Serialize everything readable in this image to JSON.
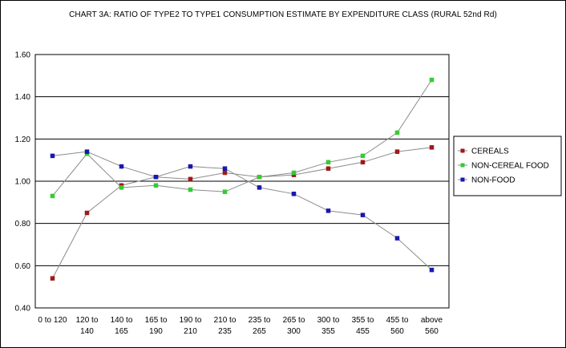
{
  "chart_data": {
    "type": "line",
    "title": "CHART 3A: RATIO OF TYPE2 TO TYPE1 CONSUMPTION ESTIMATE BY EXPENDITURE CLASS (RURAL 52nd Rd)",
    "xlabel": "",
    "ylabel": "",
    "ylim": [
      0.4,
      1.6
    ],
    "yticks": [
      "0.40",
      "0.60",
      "0.80",
      "1.00",
      "1.20",
      "1.40",
      "1.60"
    ],
    "grid": "horizontal",
    "legend_position": "right",
    "categories": [
      [
        "0 to 120"
      ],
      [
        "120 to",
        "140"
      ],
      [
        "140 to",
        "165"
      ],
      [
        "165 to",
        "190"
      ],
      [
        "190 to",
        "210"
      ],
      [
        "210 to",
        "235"
      ],
      [
        "235 to",
        "265"
      ],
      [
        "265 to",
        "300"
      ],
      [
        "300 to",
        "355"
      ],
      [
        "355 to",
        "455"
      ],
      [
        "455 to",
        "560"
      ],
      [
        "above",
        "560"
      ]
    ],
    "series": [
      {
        "name": "CEREALS",
        "color": "#a01818",
        "values": [
          0.54,
          0.85,
          0.98,
          1.02,
          1.01,
          1.04,
          1.02,
          1.03,
          1.06,
          1.09,
          1.14,
          1.16
        ]
      },
      {
        "name": "NON-CEREAL FOOD",
        "color": "#33cc33",
        "values": [
          0.93,
          1.13,
          0.97,
          0.98,
          0.96,
          0.95,
          1.02,
          1.04,
          1.09,
          1.12,
          1.23,
          1.48
        ]
      },
      {
        "name": "NON-FOOD",
        "color": "#1818b0",
        "values": [
          1.12,
          1.14,
          1.07,
          1.02,
          1.07,
          1.06,
          0.97,
          0.94,
          0.86,
          0.84,
          0.73,
          0.58
        ]
      }
    ]
  }
}
